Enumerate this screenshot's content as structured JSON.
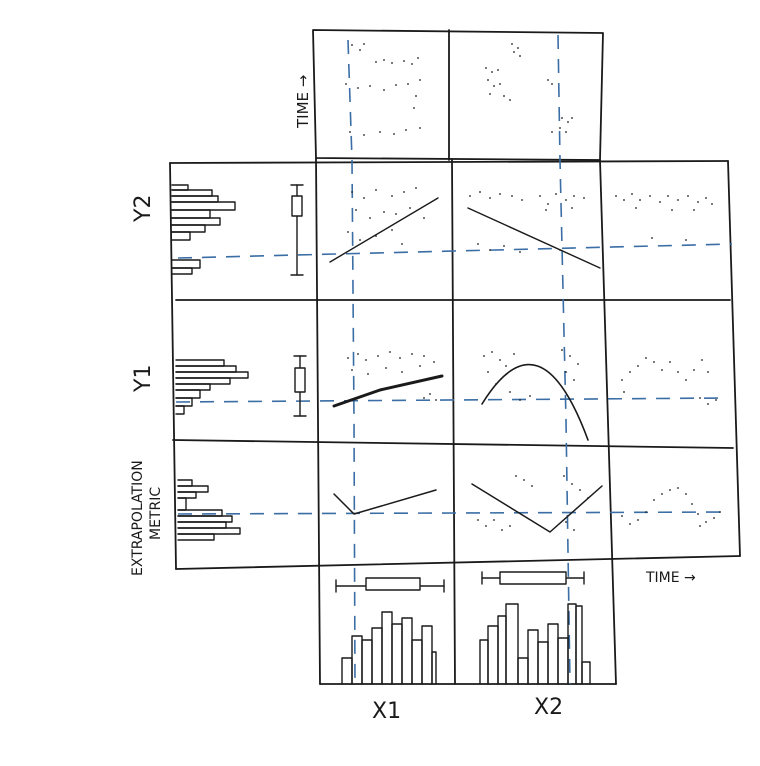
{
  "labels": {
    "time_top": "TIME →",
    "time_right": "TIME →",
    "y2": "Y2",
    "y1": "Y1",
    "extrap_line1": "EXTRAPOLATION",
    "extrap_line2": "METRIC",
    "x1": "X1",
    "x2": "X2"
  },
  "colors": {
    "ink": "#1a1a1a",
    "dashed_guide": "#3a6ea5"
  }
}
